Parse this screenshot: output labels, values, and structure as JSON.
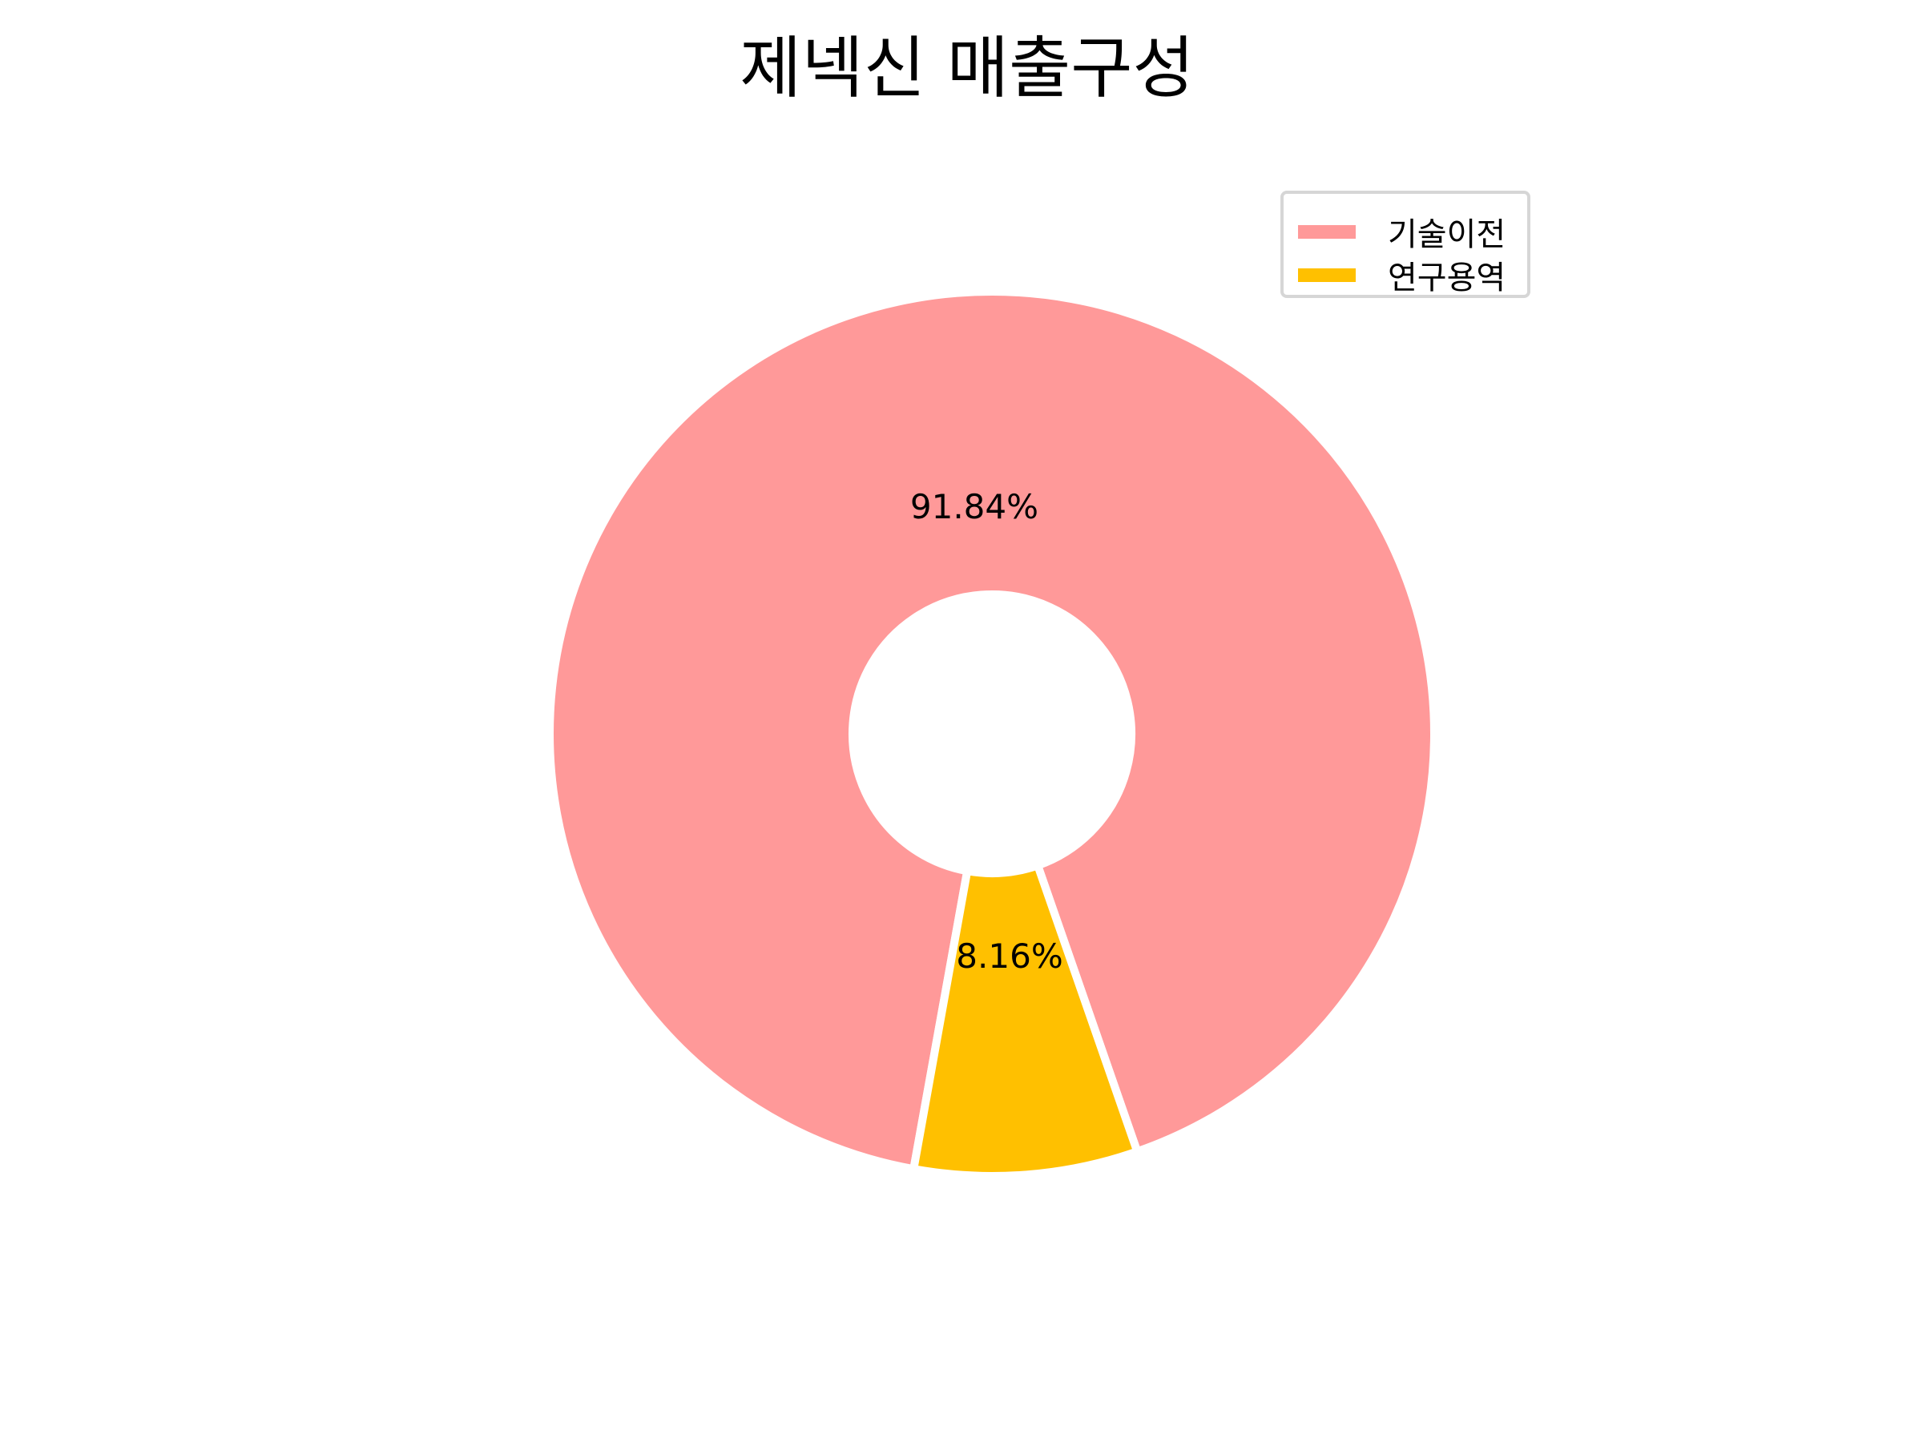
{
  "chart_data": {
    "type": "pie",
    "donut": true,
    "title": "제넥신 매출구성",
    "categories": [
      "기술이전",
      "연구용역"
    ],
    "values": [
      91.84,
      8.16
    ],
    "labels": [
      "91.84%",
      "8.16%"
    ],
    "colors": [
      "#ff9999",
      "#ffc000"
    ],
    "legend_position": "top-right"
  }
}
